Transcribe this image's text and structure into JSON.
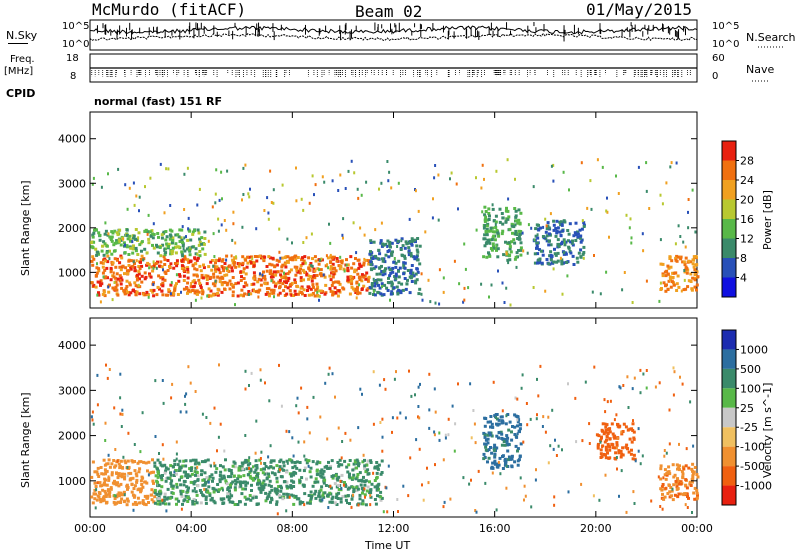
{
  "header": {
    "station": "McMurdo (fitACF)",
    "beam": "Beam 02",
    "date": "01/May/2015"
  },
  "left_labels": {
    "nsky": "N.Sky",
    "freq": "Freq.",
    "freq_unit": "[MHz]",
    "cpid": "CPID"
  },
  "right_labels": {
    "nsearch": "N.Search",
    "nave": "Nave"
  },
  "cpid_text": "normal (fast) 151 RF",
  "strip_ticks": {
    "noise_left_top": "10^5",
    "noise_left_bottom": "10^0",
    "noise_right_top": "10^5",
    "noise_right_bottom": "10^0",
    "freq_left_top": "18",
    "freq_left_bottom": "8",
    "nave_right_top": "60",
    "nave_right_bottom": "0"
  },
  "chart_data": [
    {
      "type": "heatmap",
      "name": "power",
      "ylabel": "Slant Range [km]",
      "xlabel": "Time UT",
      "x_ticks": [
        "00:00",
        "04:00",
        "08:00",
        "12:00",
        "16:00",
        "20:00",
        "00:00"
      ],
      "y_ticks": [
        1000,
        2000,
        3000,
        4000
      ],
      "ylim": [
        200,
        4600
      ],
      "colorbar": {
        "label": "Power [dB]",
        "ticks": [
          4,
          8,
          12,
          16,
          20,
          24,
          28
        ],
        "colors": [
          "#1010e0",
          "#2850b8",
          "#3a8a6a",
          "#58b848",
          "#b8c830",
          "#f0a020",
          "#f07010",
          "#e82010"
        ]
      },
      "regions": [
        {
          "t_start": 0.0,
          "t_end": 11.0,
          "r_start": 500,
          "r_end": 1400,
          "value": 26
        },
        {
          "t_start": 0.0,
          "t_end": 4.5,
          "r_start": 1400,
          "r_end": 2000,
          "value": 14
        },
        {
          "t_start": 11.0,
          "t_end": 13.0,
          "r_start": 500,
          "r_end": 1800,
          "value": 8
        },
        {
          "t_start": 15.5,
          "t_end": 17.0,
          "r_start": 1300,
          "r_end": 2500,
          "value": 12
        },
        {
          "t_start": 17.5,
          "t_end": 19.5,
          "r_start": 1200,
          "r_end": 2200,
          "value": 8
        },
        {
          "t_start": 22.5,
          "t_end": 24.0,
          "r_start": 600,
          "r_end": 1400,
          "value": 24
        }
      ]
    },
    {
      "type": "heatmap",
      "name": "velocity",
      "ylabel": "Slant Range [km]",
      "xlabel": "Time UT",
      "x_ticks": [
        "00:00",
        "04:00",
        "08:00",
        "12:00",
        "16:00",
        "20:00",
        "00:00"
      ],
      "y_ticks": [
        1000,
        2000,
        3000,
        4000
      ],
      "ylim": [
        200,
        4600
      ],
      "colorbar": {
        "label": "Velocity [m s^-1]",
        "ticks": [
          1000,
          500,
          100,
          25,
          -25,
          -100,
          -500,
          -1000
        ],
        "colors": [
          "#1c2cb0",
          "#2c6ea0",
          "#3a8a6a",
          "#58b848",
          "#c8c8c8",
          "#f0c060",
          "#f09030",
          "#f06010",
          "#e82010"
        ]
      },
      "regions": [
        {
          "t_start": 0.0,
          "t_end": 2.5,
          "r_start": 500,
          "r_end": 1500,
          "value": -300
        },
        {
          "t_start": 2.5,
          "t_end": 11.5,
          "r_start": 500,
          "r_end": 1500,
          "value": 200
        },
        {
          "t_start": 15.5,
          "t_end": 17.0,
          "r_start": 1300,
          "r_end": 2500,
          "value": 600
        },
        {
          "t_start": 20.0,
          "t_end": 21.5,
          "r_start": 1500,
          "r_end": 2300,
          "value": -700
        },
        {
          "t_start": 22.5,
          "t_end": 24.0,
          "r_start": 600,
          "r_end": 1400,
          "value": -400
        }
      ]
    }
  ]
}
